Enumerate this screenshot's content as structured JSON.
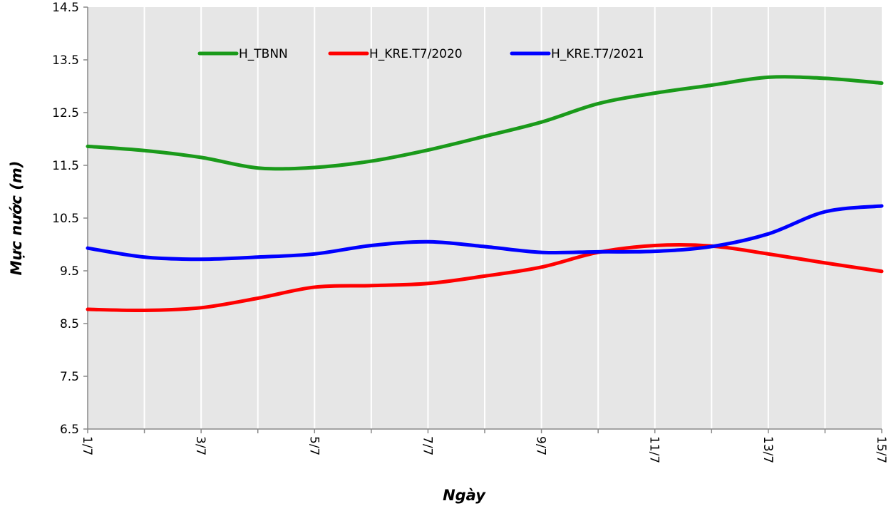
{
  "chart_data": {
    "type": "line",
    "xlabel": "Ngày",
    "ylabel": "Mực nước (m)",
    "ylim": [
      6.5,
      14.5
    ],
    "yticks": [
      "6.5",
      "7.5",
      "8.5",
      "9.5",
      "10.5",
      "11.5",
      "12.5",
      "13.5",
      "14.5"
    ],
    "x": [
      "1/7",
      "2/7",
      "3/7",
      "4/7",
      "5/7",
      "6/7",
      "7/7",
      "8/7",
      "9/7",
      "10/7",
      "11/7",
      "12/7",
      "13/7",
      "14/7",
      "15/7"
    ],
    "xticklabels": [
      "1/7",
      "3/7",
      "5/7",
      "7/7",
      "9/7",
      "11/7",
      "13/7",
      "15/7"
    ],
    "grid": true,
    "legend_position": "top",
    "series": [
      {
        "name": "H_TBNN",
        "color": "#1a9a1a",
        "values": [
          11.86,
          11.78,
          11.65,
          11.45,
          11.46,
          11.58,
          11.79,
          12.05,
          12.32,
          12.67,
          12.87,
          13.02,
          13.17,
          13.15,
          13.06
        ]
      },
      {
        "name": "H_KRE.T7/2020",
        "color": "#ff0000",
        "values": [
          8.77,
          8.75,
          8.8,
          8.98,
          9.19,
          9.22,
          9.26,
          9.4,
          9.57,
          9.85,
          9.98,
          9.97,
          9.82,
          9.65,
          9.49
        ]
      },
      {
        "name": "H_KRE.T7/2021",
        "color": "#0000ff",
        "values": [
          9.93,
          9.76,
          9.72,
          9.76,
          9.82,
          9.98,
          10.05,
          9.96,
          9.85,
          9.86,
          9.87,
          9.96,
          10.2,
          10.62,
          10.73
        ]
      }
    ]
  }
}
